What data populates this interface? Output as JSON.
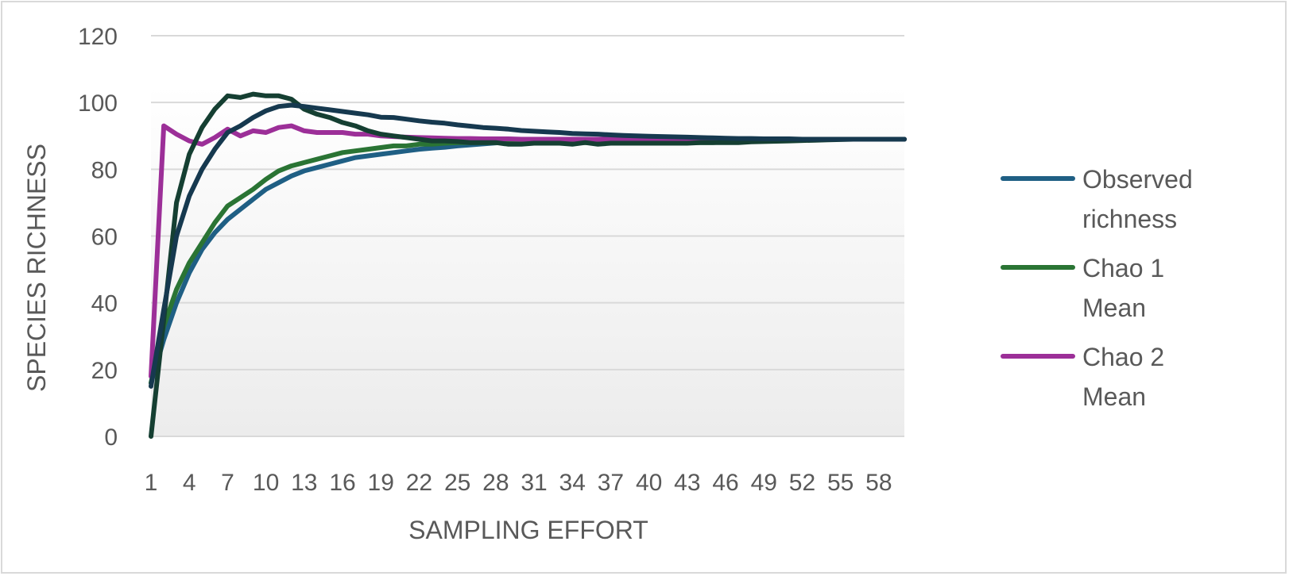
{
  "chart_data": {
    "type": "line",
    "xlabel": "SAMPLING EFFORT",
    "ylabel": "SPECIES RICHNESS",
    "ylim": [
      0,
      120
    ],
    "yticks": [
      0,
      20,
      40,
      60,
      80,
      100,
      120
    ],
    "x_tick_labels": [
      "1",
      "4",
      "7",
      "10",
      "13",
      "16",
      "19",
      "22",
      "25",
      "28",
      "31",
      "34",
      "37",
      "40",
      "43",
      "46",
      "49",
      "52",
      "55",
      "58"
    ],
    "x": [
      1,
      2,
      3,
      4,
      5,
      6,
      7,
      8,
      9,
      10,
      11,
      12,
      13,
      14,
      15,
      16,
      17,
      18,
      19,
      20,
      21,
      22,
      23,
      24,
      25,
      26,
      27,
      28,
      29,
      30,
      31,
      32,
      33,
      34,
      35,
      36,
      37,
      38,
      39,
      40,
      41,
      42,
      43,
      44,
      45,
      46,
      47,
      48,
      49,
      50,
      51,
      52,
      53,
      54,
      55,
      56,
      57,
      58,
      59,
      60
    ],
    "grid": true,
    "legend_position": "right",
    "series": [
      {
        "name": "Observed richness",
        "color": "#1f5f84",
        "values": [
          16,
          29,
          40,
          49,
          56,
          61,
          65,
          68,
          71,
          74,
          76,
          78,
          79.5,
          80.5,
          81.5,
          82.5,
          83.5,
          84,
          84.5,
          85,
          85.5,
          86,
          86.3,
          86.6,
          87,
          87.3,
          87.6,
          87.9,
          88.1,
          88.3,
          88.4,
          88.5,
          88.6,
          88.7,
          88.8,
          88.8,
          88.9,
          88.9,
          89,
          89,
          89,
          89,
          89,
          89,
          89,
          89,
          89,
          89,
          89,
          89,
          89,
          89,
          89,
          89,
          89,
          89,
          89,
          89,
          89,
          89
        ]
      },
      {
        "name": "Chao 1 Mean",
        "color": "#2a7434",
        "values": [
          16,
          33,
          44,
          52,
          58,
          64,
          69,
          71.5,
          74,
          77,
          79.5,
          81,
          82,
          83,
          84,
          85,
          85.5,
          86,
          86.5,
          87,
          87,
          87.5,
          87.5,
          87.8,
          88,
          88,
          88,
          88,
          88,
          88,
          88,
          88,
          88,
          88,
          88,
          88,
          88,
          88,
          88,
          88,
          88,
          88,
          88,
          88,
          88,
          88.2,
          88.3,
          88.4,
          88.5,
          88.6,
          88.7,
          88.8,
          88.9,
          89,
          89,
          89,
          89,
          89,
          89,
          89
        ]
      },
      {
        "name": "Chao 2 Mean",
        "color": "#9c2f98",
        "values": [
          18,
          93,
          90.5,
          88.5,
          87.5,
          89.5,
          92,
          90,
          91.5,
          91,
          92.5,
          93,
          91.5,
          91,
          91,
          91,
          90.5,
          90.5,
          90,
          89.8,
          89.6,
          89.5,
          89.4,
          89.3,
          89.2,
          89.2,
          89.1,
          89.1,
          89.1,
          89,
          89,
          89,
          89,
          89,
          89,
          89,
          89,
          89,
          89,
          89,
          89,
          89,
          89,
          89,
          89,
          89,
          89,
          89,
          89,
          89,
          89,
          89,
          89,
          89,
          89,
          89,
          89,
          89,
          89,
          89
        ]
      },
      {
        "color": "#153f32",
        "values": [
          0,
          35,
          70,
          84.5,
          92.5,
          98,
          102,
          101.5,
          102.5,
          102,
          102,
          101,
          98,
          96.5,
          95.5,
          94,
          93,
          91.5,
          90.5,
          90,
          89.5,
          89,
          88.5,
          88.5,
          88.3,
          88,
          88,
          88,
          87.5,
          87.5,
          87.8,
          87.8,
          87.8,
          87.5,
          88,
          87.5,
          87.8,
          87.8,
          87.8,
          87.8,
          87.8,
          87.8,
          87.8,
          88,
          88,
          88,
          88,
          88.2,
          88.3,
          88.4,
          88.5,
          88.6,
          88.7,
          88.8,
          88.9,
          89,
          89,
          89,
          89,
          89
        ]
      },
      {
        "color": "#16394f",
        "values": [
          15,
          38,
          60,
          72,
          80,
          86,
          91,
          93,
          95.5,
          97.5,
          98.8,
          99.2,
          98.8,
          98.3,
          97.8,
          97.3,
          96.8,
          96.3,
          95.6,
          95.5,
          95,
          94.5,
          94.1,
          93.8,
          93.3,
          92.9,
          92.5,
          92.3,
          92,
          91.6,
          91.4,
          91.2,
          91,
          90.7,
          90.6,
          90.5,
          90.3,
          90.1,
          90,
          89.9,
          89.8,
          89.7,
          89.6,
          89.5,
          89.4,
          89.3,
          89.2,
          89.2,
          89.1,
          89.1,
          89.1,
          89,
          89,
          89,
          89,
          89,
          89,
          89,
          89,
          89
        ]
      }
    ]
  }
}
